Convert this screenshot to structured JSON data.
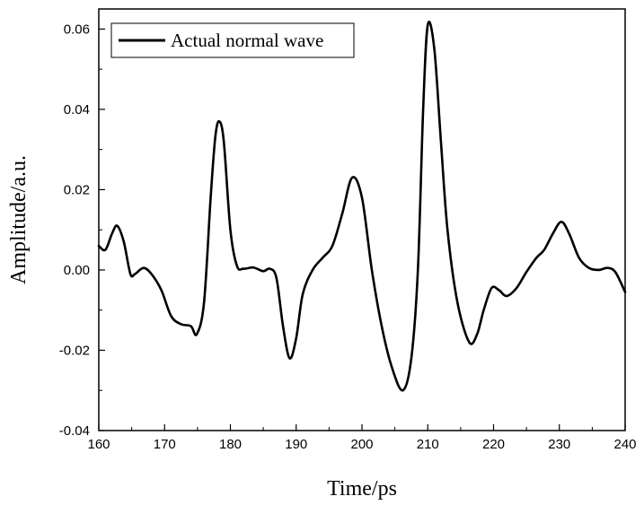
{
  "chart_data": {
    "type": "line",
    "title": "",
    "xlabel": "Time/ps",
    "ylabel": "Amplitude/a.u.",
    "xlim": [
      160,
      240
    ],
    "ylim": [
      -0.04,
      0.065
    ],
    "x_ticks": [
      160,
      170,
      180,
      190,
      200,
      210,
      220,
      230,
      240
    ],
    "y_ticks": [
      -0.04,
      -0.02,
      0.0,
      0.02,
      0.04,
      0.06
    ],
    "x_tick_labels": [
      "160",
      "170",
      "180",
      "190",
      "200",
      "210",
      "220",
      "230",
      "240"
    ],
    "y_tick_labels": [
      "-0.04",
      "-0.02",
      "0.00",
      "0.02",
      "0.04",
      "0.06"
    ],
    "grid": false,
    "legend_position": "top-left",
    "series": [
      {
        "name": "Actual normal wave",
        "color": "#000000",
        "x": [
          160,
          161,
          162,
          162.8,
          163.8,
          164.8,
          165.5,
          166.8,
          168,
          169.5,
          171,
          172.5,
          174,
          174.9,
          176,
          177,
          177.7,
          178.3,
          179,
          180,
          181,
          182,
          183.5,
          185,
          186,
          187,
          188,
          189,
          190,
          191,
          192.5,
          194,
          195.5,
          197,
          198.5,
          200,
          201.5,
          203,
          204.5,
          206.2,
          207.5,
          208.5,
          209.3,
          210,
          211,
          212,
          213,
          214.5,
          216.3,
          217.5,
          218.5,
          219.7,
          220.8,
          222,
          223.5,
          225,
          226.5,
          227.7,
          229,
          230.3,
          231.5,
          233,
          234.5,
          236,
          237.3,
          238.5,
          240
        ],
        "y": [
          0.006,
          0.005,
          0.009,
          0.011,
          0.007,
          -0.001,
          -0.001,
          0.0005,
          -0.001,
          -0.005,
          -0.0115,
          -0.0135,
          -0.014,
          -0.016,
          -0.008,
          0.018,
          0.033,
          0.037,
          0.032,
          0.01,
          0.001,
          0.0003,
          0.0006,
          -0.0003,
          0.0003,
          -0.002,
          -0.014,
          -0.022,
          -0.017,
          -0.006,
          0.0,
          0.003,
          0.006,
          0.014,
          0.023,
          0.018,
          0.0,
          -0.014,
          -0.024,
          -0.03,
          -0.022,
          0.0,
          0.04,
          0.061,
          0.055,
          0.032,
          0.01,
          -0.008,
          -0.018,
          -0.016,
          -0.01,
          -0.0045,
          -0.005,
          -0.0065,
          -0.0045,
          -0.0005,
          0.003,
          0.005,
          0.009,
          0.012,
          0.009,
          0.003,
          0.0005,
          0.0,
          0.0005,
          -0.0005,
          -0.0055
        ]
      }
    ]
  }
}
